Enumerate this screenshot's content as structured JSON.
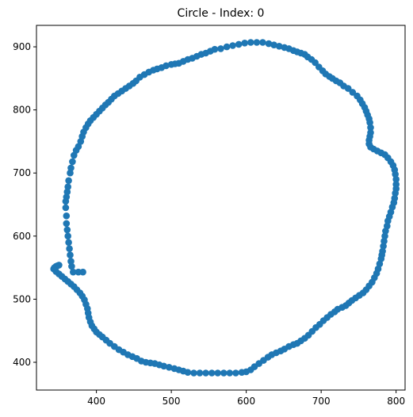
{
  "chart_data": {
    "type": "scatter",
    "title": "Circle - Index: 0",
    "xlabel": "",
    "ylabel": "",
    "xlim": [
      320,
      812
    ],
    "ylim": [
      356,
      934
    ],
    "xticks": [
      400,
      500,
      600,
      700,
      800
    ],
    "yticks": [
      400,
      500,
      600,
      700,
      800,
      900
    ],
    "grid": false,
    "marker_color": "#1f77b4",
    "series": [
      {
        "values": [
          [
            382,
            543
          ],
          [
            376,
            543
          ],
          [
            369,
            543
          ],
          [
            367,
            552
          ],
          [
            366,
            560
          ],
          [
            365,
            570
          ],
          [
            364,
            580
          ],
          [
            363,
            590
          ],
          [
            362,
            600
          ],
          [
            361,
            610
          ],
          [
            360,
            620
          ],
          [
            360,
            632
          ],
          [
            359,
            645
          ],
          [
            359,
            655
          ],
          [
            360,
            662
          ],
          [
            361,
            670
          ],
          [
            362,
            678
          ],
          [
            363,
            688
          ],
          [
            365,
            700
          ],
          [
            366,
            708
          ],
          [
            368,
            718
          ],
          [
            370,
            728
          ],
          [
            373,
            736
          ],
          [
            376,
            742
          ],
          [
            379,
            750
          ],
          [
            381,
            758
          ],
          [
            383,
            765
          ],
          [
            386,
            772
          ],
          [
            389,
            778
          ],
          [
            392,
            783
          ],
          [
            396,
            788
          ],
          [
            400,
            793
          ],
          [
            404,
            798
          ],
          [
            408,
            803
          ],
          [
            412,
            808
          ],
          [
            416,
            812
          ],
          [
            420,
            817
          ],
          [
            424,
            822
          ],
          [
            429,
            826
          ],
          [
            434,
            830
          ],
          [
            439,
            834
          ],
          [
            444,
            838
          ],
          [
            449,
            842
          ],
          [
            453,
            846
          ],
          [
            458,
            852
          ],
          [
            464,
            856
          ],
          [
            470,
            860
          ],
          [
            476,
            863
          ],
          [
            481,
            865
          ],
          [
            487,
            867
          ],
          [
            493,
            870
          ],
          [
            500,
            872
          ],
          [
            505,
            873
          ],
          [
            510,
            874
          ],
          [
            516,
            877
          ],
          [
            522,
            880
          ],
          [
            528,
            882
          ],
          [
            534,
            885
          ],
          [
            540,
            888
          ],
          [
            546,
            890
          ],
          [
            552,
            893
          ],
          [
            558,
            896
          ],
          [
            566,
            897
          ],
          [
            574,
            900
          ],
          [
            582,
            902
          ],
          [
            590,
            904
          ],
          [
            598,
            906
          ],
          [
            606,
            907
          ],
          [
            614,
            907
          ],
          [
            622,
            907
          ],
          [
            630,
            905
          ],
          [
            637,
            903
          ],
          [
            644,
            901
          ],
          [
            651,
            899
          ],
          [
            657,
            897
          ],
          [
            663,
            894
          ],
          [
            668,
            892
          ],
          [
            673,
            890
          ],
          [
            678,
            888
          ],
          [
            682,
            884
          ],
          [
            687,
            880
          ],
          [
            692,
            875
          ],
          [
            697,
            868
          ],
          [
            702,
            862
          ],
          [
            706,
            857
          ],
          [
            711,
            853
          ],
          [
            715,
            850
          ],
          [
            720,
            846
          ],
          [
            725,
            843
          ],
          [
            730,
            838
          ],
          [
            736,
            834
          ],
          [
            742,
            828
          ],
          [
            748,
            822
          ],
          [
            752,
            816
          ],
          [
            755,
            810
          ],
          [
            758,
            804
          ],
          [
            760,
            798
          ],
          [
            762,
            792
          ],
          [
            764,
            786
          ],
          [
            765,
            780
          ],
          [
            766,
            772
          ],
          [
            766,
            764
          ],
          [
            765,
            758
          ],
          [
            764,
            752
          ],
          [
            764,
            746
          ],
          [
            766,
            741
          ],
          [
            770,
            738
          ],
          [
            775,
            735
          ],
          [
            780,
            732
          ],
          [
            785,
            729
          ],
          [
            789,
            724
          ],
          [
            793,
            718
          ],
          [
            796,
            712
          ],
          [
            798,
            705
          ],
          [
            799,
            698
          ],
          [
            800,
            690
          ],
          [
            800,
            682
          ],
          [
            800,
            675
          ],
          [
            799,
            668
          ],
          [
            798,
            660
          ],
          [
            797,
            653
          ],
          [
            795,
            646
          ],
          [
            793,
            638
          ],
          [
            791,
            631
          ],
          [
            789,
            624
          ],
          [
            788,
            616
          ],
          [
            786,
            608
          ],
          [
            785,
            600
          ],
          [
            784,
            592
          ],
          [
            783,
            584
          ],
          [
            782,
            576
          ],
          [
            781,
            570
          ],
          [
            780,
            564
          ],
          [
            778,
            556
          ],
          [
            776,
            548
          ],
          [
            774,
            541
          ],
          [
            771,
            534
          ],
          [
            768,
            527
          ],
          [
            764,
            521
          ],
          [
            760,
            515
          ],
          [
            756,
            510
          ],
          [
            751,
            506
          ],
          [
            746,
            502
          ],
          [
            741,
            498
          ],
          [
            737,
            494
          ],
          [
            733,
            490
          ],
          [
            728,
            487
          ],
          [
            722,
            484
          ],
          [
            718,
            480
          ],
          [
            713,
            476
          ],
          [
            708,
            471
          ],
          [
            703,
            466
          ],
          [
            698,
            460
          ],
          [
            693,
            455
          ],
          [
            688,
            449
          ],
          [
            683,
            443
          ],
          [
            678,
            438
          ],
          [
            673,
            434
          ],
          [
            668,
            430
          ],
          [
            663,
            428
          ],
          [
            657,
            425
          ],
          [
            651,
            421
          ],
          [
            646,
            418
          ],
          [
            640,
            415
          ],
          [
            634,
            412
          ],
          [
            629,
            408
          ],
          [
            623,
            403
          ],
          [
            617,
            398
          ],
          [
            611,
            393
          ],
          [
            606,
            388
          ],
          [
            600,
            385
          ],
          [
            594,
            384
          ],
          [
            586,
            383
          ],
          [
            578,
            383
          ],
          [
            570,
            383
          ],
          [
            562,
            383
          ],
          [
            554,
            383
          ],
          [
            546,
            383
          ],
          [
            538,
            383
          ],
          [
            530,
            383
          ],
          [
            522,
            384
          ],
          [
            516,
            386
          ],
          [
            510,
            388
          ],
          [
            504,
            390
          ],
          [
            497,
            392
          ],
          [
            490,
            394
          ],
          [
            484,
            396
          ],
          [
            478,
            398
          ],
          [
            472,
            399
          ],
          [
            466,
            400
          ],
          [
            460,
            402
          ],
          [
            454,
            406
          ],
          [
            448,
            409
          ],
          [
            442,
            412
          ],
          [
            436,
            416
          ],
          [
            430,
            420
          ],
          [
            424,
            425
          ],
          [
            418,
            430
          ],
          [
            413,
            435
          ],
          [
            408,
            440
          ],
          [
            404,
            444
          ],
          [
            400,
            448
          ],
          [
            397,
            453
          ],
          [
            394,
            458
          ],
          [
            392,
            464
          ],
          [
            390,
            471
          ],
          [
            389,
            478
          ],
          [
            388,
            485
          ],
          [
            386,
            492
          ],
          [
            384,
            499
          ],
          [
            381,
            505
          ],
          [
            378,
            510
          ],
          [
            374,
            515
          ],
          [
            370,
            520
          ],
          [
            366,
            524
          ],
          [
            362,
            528
          ],
          [
            358,
            532
          ],
          [
            354,
            536
          ],
          [
            350,
            540
          ],
          [
            346,
            544
          ],
          [
            343,
            548
          ],
          [
            344,
            550
          ],
          [
            346,
            552
          ],
          [
            348,
            553
          ],
          [
            350,
            554
          ]
        ]
      }
    ]
  }
}
